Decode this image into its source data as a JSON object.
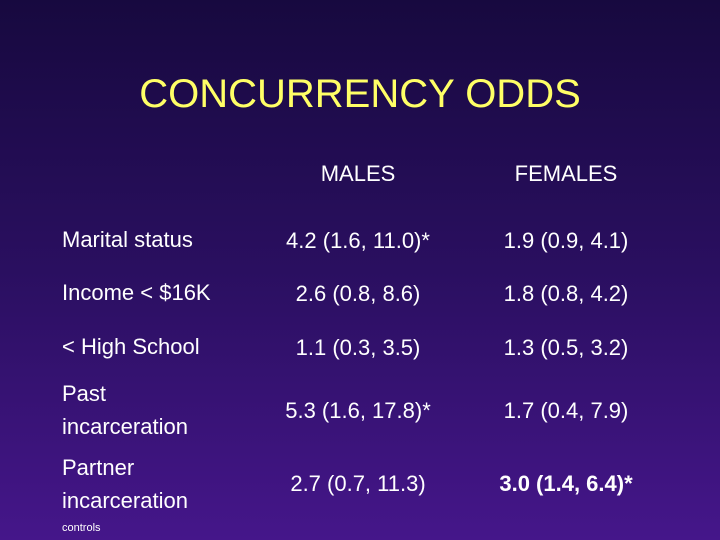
{
  "title": "CONCURRENCY ODDS",
  "table": {
    "header": [
      "MALES",
      "FEMALES"
    ],
    "rows": [
      [
        "Marital status",
        "4.2 (1.6, 11.0)*",
        "1.9 (0.9, 4.1)"
      ],
      [
        "Income < $16K",
        "2.6 (0.8, 8.6)",
        "1.8 (0.8, 4.2)"
      ],
      [
        "< High School",
        "1.1 (0.3, 3.5)",
        "1.3 (0.5, 3.2)"
      ],
      [
        "Past incarceration",
        "5.3 (1.6, 17.8)*",
        "1.7 (0.4, 7.9)"
      ],
      [
        "Partner incarceration",
        "2.7 (0.7, 11.3)",
        "3.0 (1.4, 6.4)*"
      ]
    ]
  },
  "footnote": "controls"
}
